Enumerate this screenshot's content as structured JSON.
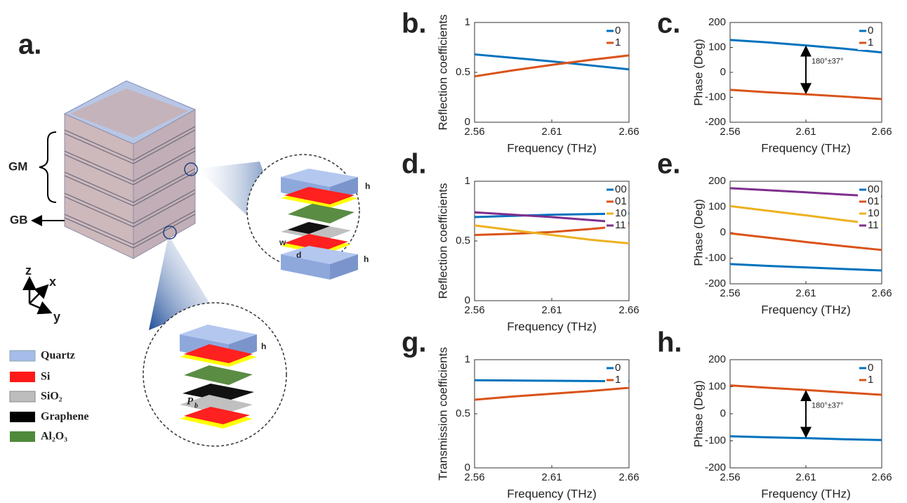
{
  "diagram": {
    "panel_label": "a.",
    "gm": "GM",
    "gb": "GB",
    "axis_z": "z",
    "axis_x": "x",
    "axis_y": "y",
    "legend": [
      "Quartz",
      "Si",
      "SiO₂",
      "Graphene",
      "Al₂O₃"
    ],
    "dims": {
      "h_top_1": "h",
      "h_top_2": "h",
      "w": "w",
      "d": "d",
      "h_bottom": "h",
      "pb_main": "P",
      "pb_sub": "b"
    }
  },
  "chart_data": [
    {
      "type": "line",
      "panel_label": "b.",
      "ylabel": "Reflection coefficients",
      "xlabel": "Frequency (THz)",
      "x": [
        2.56,
        2.585,
        2.61,
        2.635,
        2.66
      ],
      "xlim": [
        2.56,
        2.66
      ],
      "xticks": [
        2.56,
        2.61,
        2.66
      ],
      "ylim": [
        0,
        1
      ],
      "yticks": [
        0,
        0.5,
        1
      ],
      "legend": "upper right",
      "series": [
        {
          "name": "0",
          "color": "#0072bd",
          "values": [
            0.68,
            0.645,
            0.61,
            0.57,
            0.53
          ]
        },
        {
          "name": "1",
          "color": "#d95319",
          "values": [
            0.46,
            0.52,
            0.575,
            0.625,
            0.67
          ]
        }
      ]
    },
    {
      "type": "line",
      "panel_label": "c.",
      "ylabel": "Phase (Deg)",
      "xlabel": "Frequency (THz)",
      "x": [
        2.56,
        2.585,
        2.61,
        2.635,
        2.66
      ],
      "xlim": [
        2.56,
        2.66
      ],
      "xticks": [
        2.56,
        2.61,
        2.66
      ],
      "ylim": [
        -200,
        200
      ],
      "yticks": [
        -200,
        -100,
        0,
        100,
        200
      ],
      "legend": "upper right",
      "annotation": "180°±37°",
      "series": [
        {
          "name": "0",
          "color": "#0072bd",
          "values": [
            130,
            120,
            108,
            95,
            80
          ]
        },
        {
          "name": "1",
          "color": "#d95319",
          "values": [
            -70,
            -80,
            -88,
            -97,
            -107
          ]
        }
      ]
    },
    {
      "type": "line",
      "panel_label": "d.",
      "ylabel": "Reflection coefficients",
      "xlabel": "Frequency (THz)",
      "x": [
        2.56,
        2.585,
        2.61,
        2.635,
        2.66
      ],
      "xlim": [
        2.56,
        2.66
      ],
      "xticks": [
        2.56,
        2.61,
        2.66
      ],
      "ylim": [
        0,
        1
      ],
      "yticks": [
        0,
        0.5,
        1
      ],
      "legend": "upper right",
      "series": [
        {
          "name": "00",
          "color": "#0072bd",
          "values": [
            0.7,
            0.71,
            0.72,
            0.725,
            0.73
          ]
        },
        {
          "name": "01",
          "color": "#d95319",
          "values": [
            0.55,
            0.56,
            0.575,
            0.6,
            0.63
          ]
        },
        {
          "name": "10",
          "color": "#edb120",
          "values": [
            0.63,
            0.59,
            0.55,
            0.51,
            0.48
          ]
        },
        {
          "name": "11",
          "color": "#7e2f8e",
          "values": [
            0.74,
            0.72,
            0.7,
            0.675,
            0.65
          ]
        }
      ]
    },
    {
      "type": "line",
      "panel_label": "e.",
      "ylabel": "Phase (Deg)",
      "xlabel": "Frequency (THz)",
      "x": [
        2.56,
        2.585,
        2.61,
        2.635,
        2.66
      ],
      "xlim": [
        2.56,
        2.66
      ],
      "xticks": [
        2.56,
        2.61,
        2.66
      ],
      "ylim": [
        -200,
        200
      ],
      "yticks": [
        -200,
        -100,
        0,
        100,
        200
      ],
      "legend": "upper right",
      "series": [
        {
          "name": "00",
          "color": "#0072bd",
          "values": [
            -123,
            -130,
            -136,
            -142,
            -148
          ]
        },
        {
          "name": "01",
          "color": "#d95319",
          "values": [
            -3,
            -20,
            -37,
            -53,
            -68
          ]
        },
        {
          "name": "10",
          "color": "#edb120",
          "values": [
            103,
            85,
            67,
            48,
            30
          ]
        },
        {
          "name": "11",
          "color": "#7e2f8e",
          "values": [
            173,
            165,
            157,
            148,
            140
          ]
        }
      ]
    },
    {
      "type": "line",
      "panel_label": "g.",
      "ylabel": "Transmission coefficients",
      "xlabel": "Frequency (THz)",
      "x": [
        2.56,
        2.585,
        2.61,
        2.635,
        2.66
      ],
      "xlim": [
        2.56,
        2.66
      ],
      "xticks": [
        2.56,
        2.61,
        2.66
      ],
      "ylim": [
        0,
        1
      ],
      "yticks": [
        0,
        0.5,
        1
      ],
      "legend": "upper right",
      "series": [
        {
          "name": "0",
          "color": "#0072bd",
          "values": [
            0.81,
            0.808,
            0.805,
            0.803,
            0.8
          ]
        },
        {
          "name": "1",
          "color": "#d95319",
          "values": [
            0.63,
            0.66,
            0.685,
            0.71,
            0.74
          ]
        }
      ]
    },
    {
      "type": "line",
      "panel_label": "h.",
      "ylabel": "Phase (Deg)",
      "xlabel": "Frequency (THz)",
      "x": [
        2.56,
        2.585,
        2.61,
        2.635,
        2.66
      ],
      "xlim": [
        2.56,
        2.66
      ],
      "xticks": [
        2.56,
        2.61,
        2.66
      ],
      "ylim": [
        -200,
        200
      ],
      "yticks": [
        -200,
        -100,
        0,
        100,
        200
      ],
      "legend": "upper right",
      "annotation": "180°±37°",
      "series": [
        {
          "name": "0",
          "color": "#0072bd",
          "values": [
            -83,
            -87,
            -90,
            -94,
            -97
          ]
        },
        {
          "name": "1",
          "color": "#d95319",
          "values": [
            105,
            96,
            88,
            79,
            70
          ]
        }
      ]
    }
  ]
}
